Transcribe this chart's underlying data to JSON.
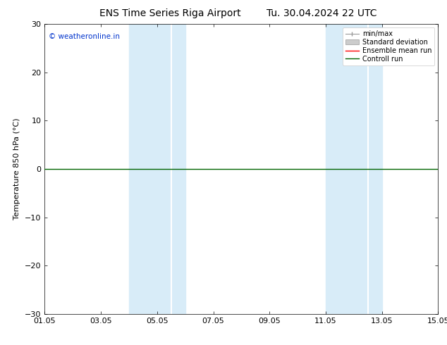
{
  "title_left": "ENS Time Series Riga Airport",
  "title_right": "Tu. 30.04.2024 22 UTC",
  "ylabel": "Temperature 850 hPa (°C)",
  "xlim": [
    0,
    14
  ],
  "ylim": [
    -30,
    30
  ],
  "yticks": [
    -30,
    -20,
    -10,
    0,
    10,
    20,
    30
  ],
  "xtick_labels": [
    "01.05",
    "03.05",
    "05.05",
    "07.05",
    "09.05",
    "11.05",
    "13.05",
    "15.05"
  ],
  "xtick_positions": [
    0,
    2,
    4,
    6,
    8,
    10,
    12,
    14
  ],
  "bg_color": "#ffffff",
  "plot_bg_color": "#ffffff",
  "watermark_text": "© weatheronline.in",
  "watermark_color": "#0033cc",
  "shaded_bands": [
    {
      "x_start": 3.0,
      "x_end": 4.5,
      "color": "#ddeeff"
    },
    {
      "x_start": 5.0,
      "x_end": 5.5,
      "color": "#ddeeff"
    },
    {
      "x_start": 10.0,
      "x_end": 11.5,
      "color": "#ddeeff"
    },
    {
      "x_start": 12.0,
      "x_end": 12.5,
      "color": "#ddeeff"
    }
  ],
  "control_run_y": 0,
  "control_run_color": "#006400",
  "ensemble_mean_color": "#ff0000",
  "minmax_color": "#999999",
  "std_dev_color": "#cccccc",
  "legend_labels": [
    "min/max",
    "Standard deviation",
    "Ensemble mean run",
    "Controll run"
  ],
  "title_fontsize": 10,
  "tick_fontsize": 8,
  "label_fontsize": 8,
  "legend_fontsize": 7
}
